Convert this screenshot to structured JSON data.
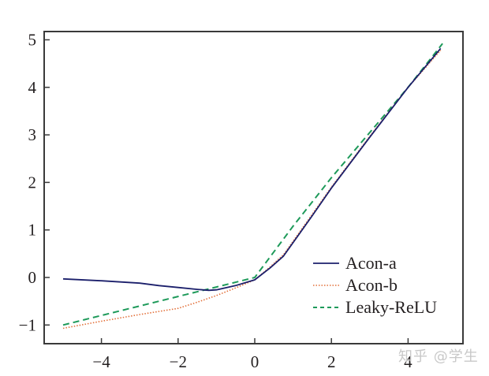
{
  "chart_data": {
    "type": "line",
    "title": "",
    "xlabel": "",
    "ylabel": "",
    "xlim": [
      -5.4,
      5.5
    ],
    "ylim": [
      -1.4,
      5.2
    ],
    "grid": false,
    "legend_position": "lower right",
    "x_ticks": [
      -4,
      -2,
      0,
      2,
      4
    ],
    "x_tick_labels": [
      "−4",
      "−2",
      "0",
      "2",
      "4"
    ],
    "y_ticks": [
      -1,
      0,
      1,
      2,
      3,
      4,
      5
    ],
    "y_tick_labels": [
      "−1",
      "0",
      "1",
      "2",
      "3",
      "4",
      "5"
    ],
    "series": [
      {
        "name": "Acon-a",
        "color": "#1b1f6b",
        "style": "solid",
        "x": [
          -5.0,
          -4.0,
          -3.0,
          -2.5,
          -2.0,
          -1.5,
          -1.2,
          -1.0,
          -0.5,
          0.0,
          0.4,
          0.75,
          1.5,
          2.0,
          3.0,
          4.0,
          4.85
        ],
        "y": [
          -0.03,
          -0.07,
          -0.12,
          -0.17,
          -0.21,
          -0.25,
          -0.27,
          -0.26,
          -0.17,
          -0.05,
          0.2,
          0.45,
          1.3,
          1.88,
          2.95,
          4.0,
          4.82
        ]
      },
      {
        "name": "Acon-b",
        "color": "#e3703a",
        "style": "dotted",
        "x": [
          -5.0,
          -4.0,
          -3.0,
          -2.0,
          -1.5,
          -1.0,
          -0.5,
          0.0,
          0.4,
          0.75,
          1.5,
          2.0,
          3.0,
          4.0,
          4.85
        ],
        "y": [
          -1.07,
          -0.92,
          -0.78,
          -0.65,
          -0.52,
          -0.38,
          -0.22,
          -0.05,
          0.22,
          0.48,
          1.33,
          1.9,
          2.97,
          4.0,
          4.78
        ]
      },
      {
        "name": "Leaky-ReLU",
        "color": "#1e9a5a",
        "style": "dashed",
        "x": [
          -5.0,
          -4.0,
          -3.0,
          -2.0,
          -1.0,
          0.0,
          1.0,
          2.0,
          3.0,
          4.0,
          4.9
        ],
        "y": [
          -1.0,
          -0.8,
          -0.6,
          -0.4,
          -0.2,
          0.0,
          1.08,
          2.1,
          3.05,
          4.0,
          4.92
        ]
      }
    ]
  },
  "legend": {
    "items": [
      {
        "label": "Acon-a"
      },
      {
        "label": "Acon-b"
      },
      {
        "label": "Leaky-ReLU"
      }
    ]
  },
  "watermark": "知乎 @学生"
}
